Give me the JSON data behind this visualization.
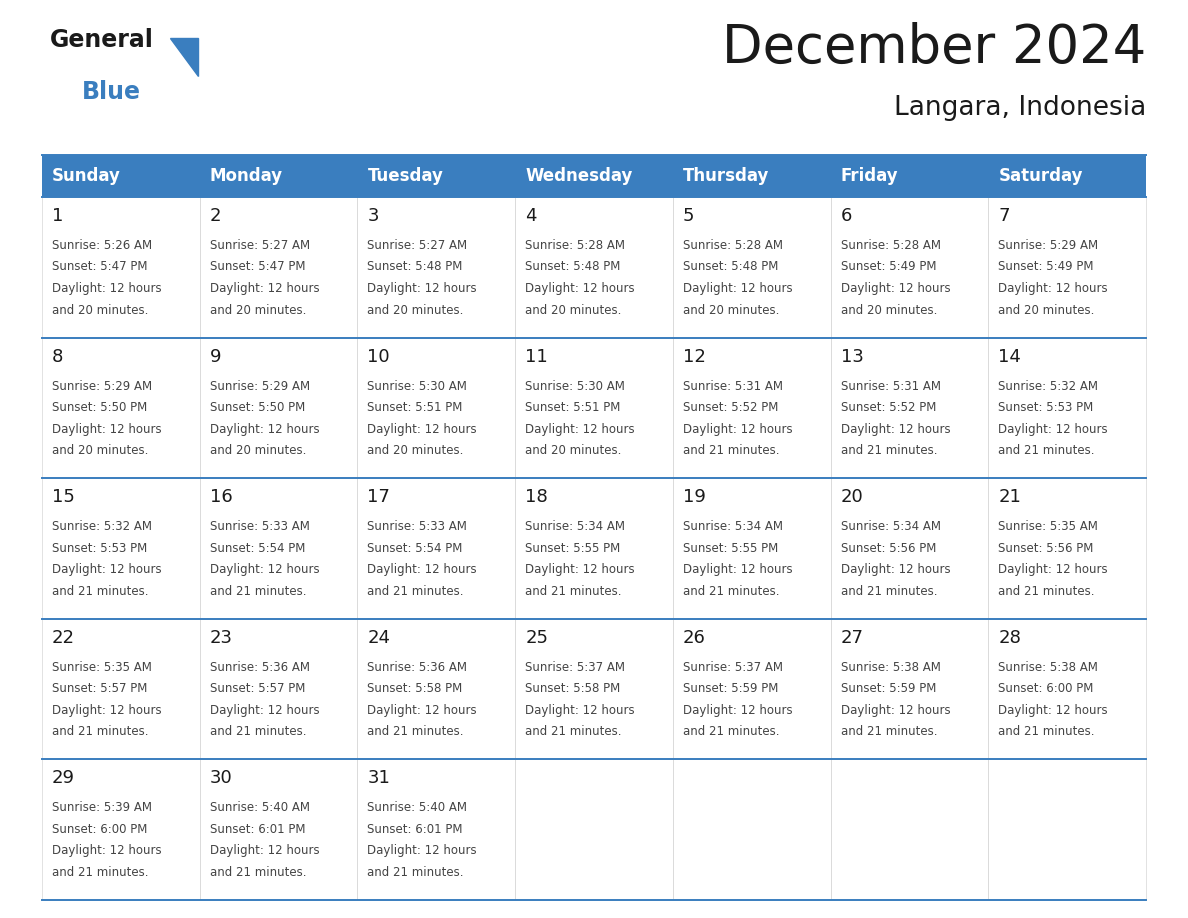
{
  "title": "December 2024",
  "subtitle": "Langara, Indonesia",
  "header_color": "#3a7ebf",
  "header_text_color": "#ffffff",
  "cell_bg_color": "#ffffff",
  "text_color": "#333333",
  "line_color": "#3a7ebf",
  "days_of_week": [
    "Sunday",
    "Monday",
    "Tuesday",
    "Wednesday",
    "Thursday",
    "Friday",
    "Saturday"
  ],
  "weeks": [
    [
      {
        "day": 1,
        "sunrise": "5:26 AM",
        "sunset": "5:47 PM",
        "daylight_hours": 12,
        "daylight_minutes": 20
      },
      {
        "day": 2,
        "sunrise": "5:27 AM",
        "sunset": "5:47 PM",
        "daylight_hours": 12,
        "daylight_minutes": 20
      },
      {
        "day": 3,
        "sunrise": "5:27 AM",
        "sunset": "5:48 PM",
        "daylight_hours": 12,
        "daylight_minutes": 20
      },
      {
        "day": 4,
        "sunrise": "5:28 AM",
        "sunset": "5:48 PM",
        "daylight_hours": 12,
        "daylight_minutes": 20
      },
      {
        "day": 5,
        "sunrise": "5:28 AM",
        "sunset": "5:48 PM",
        "daylight_hours": 12,
        "daylight_minutes": 20
      },
      {
        "day": 6,
        "sunrise": "5:28 AM",
        "sunset": "5:49 PM",
        "daylight_hours": 12,
        "daylight_minutes": 20
      },
      {
        "day": 7,
        "sunrise": "5:29 AM",
        "sunset": "5:49 PM",
        "daylight_hours": 12,
        "daylight_minutes": 20
      }
    ],
    [
      {
        "day": 8,
        "sunrise": "5:29 AM",
        "sunset": "5:50 PM",
        "daylight_hours": 12,
        "daylight_minutes": 20
      },
      {
        "day": 9,
        "sunrise": "5:29 AM",
        "sunset": "5:50 PM",
        "daylight_hours": 12,
        "daylight_minutes": 20
      },
      {
        "day": 10,
        "sunrise": "5:30 AM",
        "sunset": "5:51 PM",
        "daylight_hours": 12,
        "daylight_minutes": 20
      },
      {
        "day": 11,
        "sunrise": "5:30 AM",
        "sunset": "5:51 PM",
        "daylight_hours": 12,
        "daylight_minutes": 20
      },
      {
        "day": 12,
        "sunrise": "5:31 AM",
        "sunset": "5:52 PM",
        "daylight_hours": 12,
        "daylight_minutes": 21
      },
      {
        "day": 13,
        "sunrise": "5:31 AM",
        "sunset": "5:52 PM",
        "daylight_hours": 12,
        "daylight_minutes": 21
      },
      {
        "day": 14,
        "sunrise": "5:32 AM",
        "sunset": "5:53 PM",
        "daylight_hours": 12,
        "daylight_minutes": 21
      }
    ],
    [
      {
        "day": 15,
        "sunrise": "5:32 AM",
        "sunset": "5:53 PM",
        "daylight_hours": 12,
        "daylight_minutes": 21
      },
      {
        "day": 16,
        "sunrise": "5:33 AM",
        "sunset": "5:54 PM",
        "daylight_hours": 12,
        "daylight_minutes": 21
      },
      {
        "day": 17,
        "sunrise": "5:33 AM",
        "sunset": "5:54 PM",
        "daylight_hours": 12,
        "daylight_minutes": 21
      },
      {
        "day": 18,
        "sunrise": "5:34 AM",
        "sunset": "5:55 PM",
        "daylight_hours": 12,
        "daylight_minutes": 21
      },
      {
        "day": 19,
        "sunrise": "5:34 AM",
        "sunset": "5:55 PM",
        "daylight_hours": 12,
        "daylight_minutes": 21
      },
      {
        "day": 20,
        "sunrise": "5:34 AM",
        "sunset": "5:56 PM",
        "daylight_hours": 12,
        "daylight_minutes": 21
      },
      {
        "day": 21,
        "sunrise": "5:35 AM",
        "sunset": "5:56 PM",
        "daylight_hours": 12,
        "daylight_minutes": 21
      }
    ],
    [
      {
        "day": 22,
        "sunrise": "5:35 AM",
        "sunset": "5:57 PM",
        "daylight_hours": 12,
        "daylight_minutes": 21
      },
      {
        "day": 23,
        "sunrise": "5:36 AM",
        "sunset": "5:57 PM",
        "daylight_hours": 12,
        "daylight_minutes": 21
      },
      {
        "day": 24,
        "sunrise": "5:36 AM",
        "sunset": "5:58 PM",
        "daylight_hours": 12,
        "daylight_minutes": 21
      },
      {
        "day": 25,
        "sunrise": "5:37 AM",
        "sunset": "5:58 PM",
        "daylight_hours": 12,
        "daylight_minutes": 21
      },
      {
        "day": 26,
        "sunrise": "5:37 AM",
        "sunset": "5:59 PM",
        "daylight_hours": 12,
        "daylight_minutes": 21
      },
      {
        "day": 27,
        "sunrise": "5:38 AM",
        "sunset": "5:59 PM",
        "daylight_hours": 12,
        "daylight_minutes": 21
      },
      {
        "day": 28,
        "sunrise": "5:38 AM",
        "sunset": "6:00 PM",
        "daylight_hours": 12,
        "daylight_minutes": 21
      }
    ],
    [
      {
        "day": 29,
        "sunrise": "5:39 AM",
        "sunset": "6:00 PM",
        "daylight_hours": 12,
        "daylight_minutes": 21
      },
      {
        "day": 30,
        "sunrise": "5:40 AM",
        "sunset": "6:01 PM",
        "daylight_hours": 12,
        "daylight_minutes": 21
      },
      {
        "day": 31,
        "sunrise": "5:40 AM",
        "sunset": "6:01 PM",
        "daylight_hours": 12,
        "daylight_minutes": 21
      },
      null,
      null,
      null,
      null
    ]
  ]
}
